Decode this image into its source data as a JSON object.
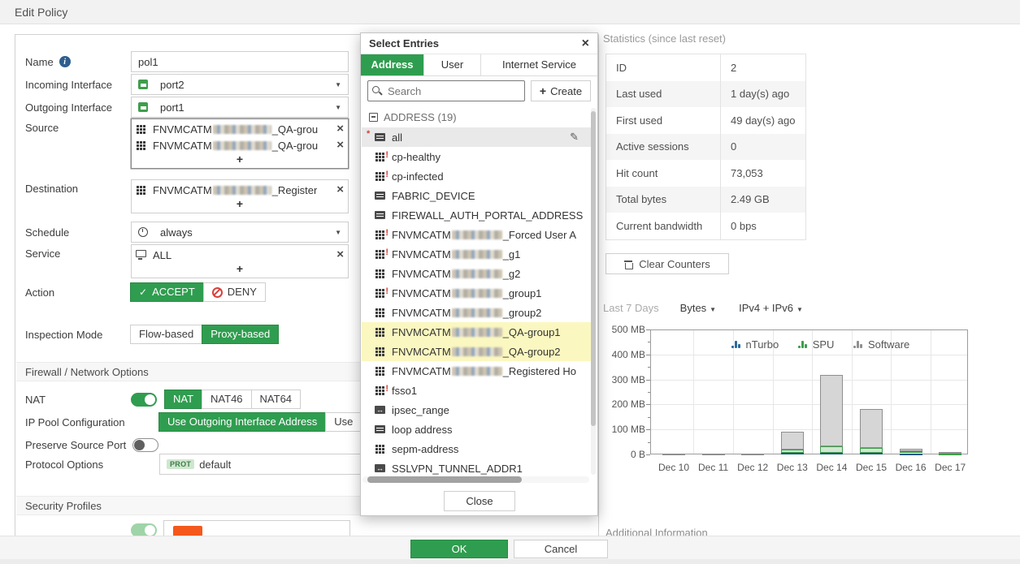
{
  "header": {
    "title": "Edit Policy"
  },
  "form": {
    "name": {
      "label": "Name",
      "value": "pol1"
    },
    "incoming": {
      "label": "Incoming Interface",
      "value": "port2"
    },
    "outgoing": {
      "label": "Outgoing Interface",
      "value": "port1"
    },
    "source": {
      "label": "Source",
      "add_label": "+",
      "entries": [
        {
          "icon": "group",
          "prefix": "FNVMCATM",
          "redacted": true,
          "suffix": "_QA-grou"
        },
        {
          "icon": "group",
          "prefix": "FNVMCATM",
          "redacted": true,
          "suffix": "_QA-grou"
        }
      ]
    },
    "destination": {
      "label": "Destination",
      "add_label": "+",
      "entries": [
        {
          "icon": "group",
          "prefix": "FNVMCATM",
          "redacted": true,
          "suffix": "_Register"
        }
      ]
    },
    "schedule": {
      "label": "Schedule",
      "value": "always"
    },
    "service": {
      "label": "Service",
      "add_label": "+",
      "entries": [
        {
          "icon": "service",
          "name": "ALL"
        }
      ]
    },
    "action": {
      "label": "Action",
      "options": [
        {
          "label": "ACCEPT",
          "selected": true,
          "icon": "check"
        },
        {
          "label": "DENY",
          "icon": "deny"
        }
      ]
    },
    "inspection": {
      "label": "Inspection Mode",
      "options": [
        {
          "label": "Flow-based"
        },
        {
          "label": "Proxy-based",
          "selected": true
        }
      ]
    },
    "firewall_section": "Firewall / Network Options",
    "nat": {
      "label": "NAT",
      "enabled": true,
      "options": [
        {
          "label": "NAT",
          "selected": true
        },
        {
          "label": "NAT46"
        },
        {
          "label": "NAT64"
        }
      ]
    },
    "ippool": {
      "label": "IP Pool Configuration",
      "options": [
        {
          "label": "Use Outgoing Interface Address",
          "selected": true
        },
        {
          "label": "Use"
        }
      ]
    },
    "preserve": {
      "label": "Preserve Source Port",
      "enabled": false
    },
    "protocol": {
      "label": "Protocol Options",
      "badge": "PROT",
      "value": "default"
    },
    "security_section": "Security Profiles"
  },
  "popup": {
    "title": "Select Entries",
    "tabs": [
      {
        "label": "Address",
        "selected": true
      },
      {
        "label": "User"
      },
      {
        "label": "Internet Service"
      }
    ],
    "search_placeholder": "Search",
    "create_label": "Create",
    "group_header": "ADDRESS (19)",
    "items": [
      {
        "icon": "page",
        "name": "all",
        "selected": true,
        "required": true,
        "editable": true
      },
      {
        "icon": "group",
        "alert": true,
        "name": "cp-healthy"
      },
      {
        "icon": "group",
        "alert": true,
        "name": "cp-infected"
      },
      {
        "icon": "page",
        "name": "FABRIC_DEVICE"
      },
      {
        "icon": "page",
        "name": "FIREWALL_AUTH_PORTAL_ADDRESS"
      },
      {
        "icon": "group",
        "alert": true,
        "prefix": "FNVMCATM",
        "redacted": true,
        "suffix": "_Forced User A"
      },
      {
        "icon": "group",
        "alert": true,
        "prefix": "FNVMCATM",
        "redacted": true,
        "suffix": "_g1"
      },
      {
        "icon": "group",
        "prefix": "FNVMCATM",
        "redacted": true,
        "suffix": "_g2"
      },
      {
        "icon": "group",
        "alert": true,
        "prefix": "FNVMCATM",
        "redacted": true,
        "suffix": "_group1"
      },
      {
        "icon": "group",
        "prefix": "FNVMCATM",
        "redacted": true,
        "suffix": "_group2"
      },
      {
        "icon": "group",
        "prefix": "FNVMCATM",
        "redacted": true,
        "suffix": "_QA-group1",
        "highlight": true
      },
      {
        "icon": "group",
        "prefix": "FNVMCATM",
        "redacted": true,
        "suffix": "_QA-group2",
        "highlight": true
      },
      {
        "icon": "group",
        "prefix": "FNVMCATM",
        "redacted": true,
        "suffix": "_Registered Ho"
      },
      {
        "icon": "group",
        "alert": true,
        "name": "fsso1"
      },
      {
        "icon": "range",
        "name": "ipsec_range"
      },
      {
        "icon": "page",
        "name": "loop address"
      },
      {
        "icon": "group",
        "name": "sepm-address"
      },
      {
        "icon": "range",
        "name": "SSLVPN_TUNNEL_ADDR1"
      }
    ],
    "close_label": "Close"
  },
  "stats": {
    "title": "Statistics (since last reset)",
    "rows": [
      {
        "label": "ID",
        "value": "2"
      },
      {
        "label": "Last used",
        "value": "1 day(s) ago"
      },
      {
        "label": "First used",
        "value": "49 day(s) ago"
      },
      {
        "label": "Active sessions",
        "value": "0"
      },
      {
        "label": "Hit count",
        "value": "73,053"
      },
      {
        "label": "Total bytes",
        "value": "2.49 GB"
      },
      {
        "label": "Current bandwidth",
        "value": "0 bps"
      }
    ],
    "clear_label": "Clear Counters"
  },
  "chart_header": {
    "period": "Last 7 Days",
    "unit": "Bytes",
    "family": "IPv4 + IPv6"
  },
  "chart_data": {
    "type": "bar",
    "stacked": true,
    "categories": [
      "Dec 10",
      "Dec 11",
      "Dec 12",
      "Dec 13",
      "Dec 14",
      "Dec 15",
      "Dec 16",
      "Dec 17"
    ],
    "series": [
      {
        "name": "nTurbo",
        "color": "#2c6a9e",
        "values_mb": [
          0,
          0,
          0,
          5,
          6,
          5,
          3,
          0
        ]
      },
      {
        "name": "SPU",
        "color": "#3f9e4c",
        "values_mb": [
          0,
          0,
          0,
          13,
          26,
          22,
          7,
          2
        ]
      },
      {
        "name": "Software",
        "color": "#8f8f8f",
        "values_mb": [
          4,
          4,
          4,
          72,
          285,
          155,
          12,
          2
        ]
      }
    ],
    "y_ticks": [
      {
        "mb": 0,
        "label": "0 B"
      },
      {
        "mb": 100,
        "label": "100 MB"
      },
      {
        "mb": 200,
        "label": "200 MB"
      },
      {
        "mb": 300,
        "label": "300 MB"
      },
      {
        "mb": 400,
        "label": "400 MB"
      },
      {
        "mb": 500,
        "label": "500 MB"
      }
    ],
    "ylim_mb": [
      0,
      500
    ],
    "unit_note": "MB",
    "grid": true,
    "legend_position": "top-right-inside"
  },
  "additional_info_label": "Additional Information",
  "footer": {
    "ok": "OK",
    "cancel": "Cancel"
  },
  "colors": {
    "accent_green": "#2f9d4f",
    "highlight_yellow": "#fbf7c0",
    "alert_red": "#d9403a"
  }
}
